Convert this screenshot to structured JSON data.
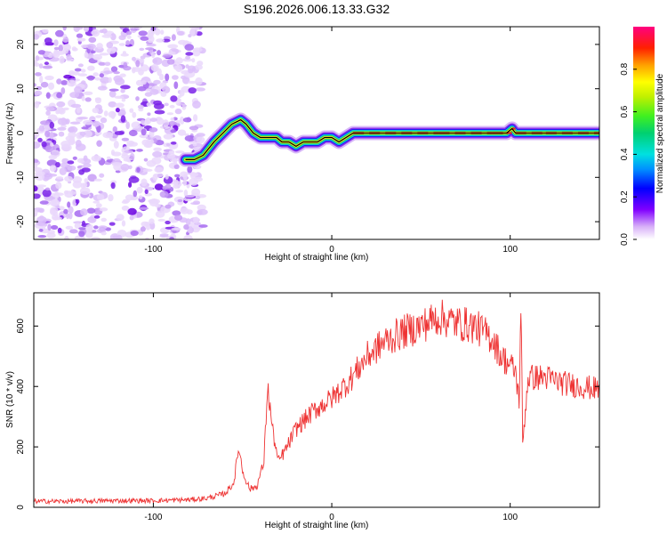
{
  "title": "S196.2026.006.13.33.G32",
  "chart_data": [
    {
      "type": "heatmap",
      "xlabel": "Height of straight line (km)",
      "ylabel": "Frequency (Hz)",
      "xlim": [
        -167,
        150
      ],
      "ylim": [
        -24,
        24
      ],
      "xticks": [
        -100,
        0,
        100
      ],
      "xtick_labels": [
        "-100",
        "0",
        "100"
      ],
      "yticks": [
        -20,
        -10,
        0,
        10,
        20
      ],
      "ytick_labels": [
        "-20",
        "-10",
        "0",
        "10",
        "20"
      ],
      "noise_region_km": [
        -167,
        -72
      ],
      "frequency_track": {
        "x": [
          -82,
          -77,
          -72,
          -66,
          -61,
          -56,
          -51,
          -48,
          -44,
          -40,
          -36,
          -31,
          -28,
          -24,
          -20,
          -16,
          -12,
          -8,
          -4,
          0,
          4,
          8,
          12,
          30,
          60,
          90,
          98,
          101,
          103,
          120,
          150
        ],
        "y": [
          -6,
          -6,
          -5,
          -2,
          0,
          2,
          3,
          2,
          0,
          -1,
          -1,
          -1,
          -2,
          -2,
          -3,
          -2,
          -2,
          -2,
          -1,
          -1,
          -2,
          -1,
          0,
          0,
          0,
          0,
          0,
          1,
          0,
          0,
          0
        ]
      },
      "colorbar": {
        "label": "Normalized spectral amplitude",
        "range": [
          0,
          1
        ],
        "ticks": [
          0.0,
          0.2,
          0.4,
          0.6,
          0.8
        ],
        "tick_labels": [
          "0.0",
          "0.2",
          "0.4",
          "0.6",
          "0.8"
        ]
      }
    },
    {
      "type": "line",
      "xlabel": "Height of straight line (km)",
      "ylabel": "SNR (10 * v/v)",
      "xlim": [
        -167,
        150
      ],
      "ylim": [
        0,
        710
      ],
      "xticks": [
        -100,
        0,
        100
      ],
      "xtick_labels": [
        "-100",
        "0",
        "100"
      ],
      "yticks": [
        0,
        200,
        400,
        600
      ],
      "ytick_labels": [
        "0",
        "200",
        "400",
        "600"
      ],
      "series": [
        {
          "name": "SNR",
          "color": "#ee3333",
          "x": [
            -167,
            -150,
            -120,
            -100,
            -80,
            -70,
            -60,
            -55,
            -52,
            -50,
            -46,
            -42,
            -38,
            -36,
            -33,
            -30,
            -25,
            -20,
            -10,
            0,
            10,
            20,
            30,
            40,
            50,
            60,
            70,
            80,
            90,
            95,
            100,
            103,
            105,
            106,
            107,
            110,
            120,
            130,
            140,
            150
          ],
          "y": [
            20,
            20,
            22,
            22,
            25,
            30,
            45,
            80,
            200,
            120,
            60,
            70,
            150,
            400,
            250,
            150,
            200,
            260,
            320,
            360,
            420,
            500,
            550,
            580,
            600,
            630,
            610,
            600,
            560,
            500,
            470,
            450,
            350,
            680,
            210,
            430,
            430,
            410,
            400,
            390
          ]
        }
      ]
    }
  ]
}
